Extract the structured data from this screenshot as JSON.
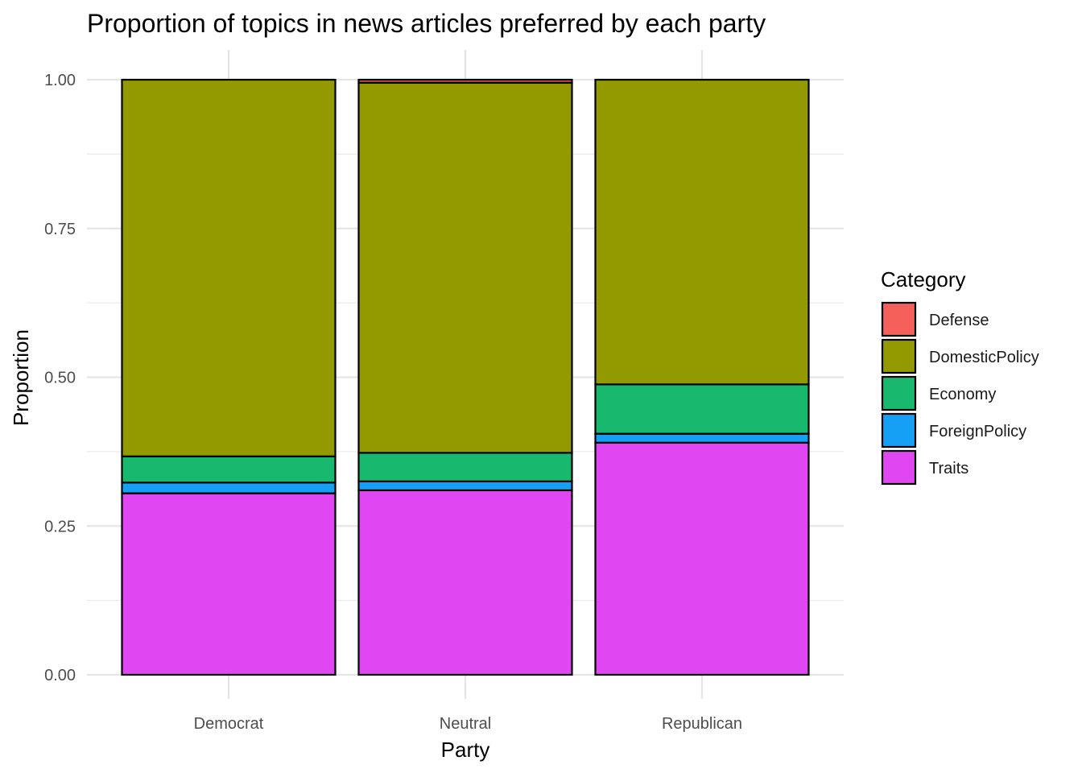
{
  "chart_data": {
    "type": "bar",
    "stacked": true,
    "title": "Proportion of topics in news articles preferred by each party",
    "xlabel": "Party",
    "ylabel": "Proportion",
    "ylim": [
      0,
      1
    ],
    "yticks": [
      "0.00",
      "0.25",
      "0.50",
      "0.75",
      "1.00"
    ],
    "ytick_values": [
      0,
      0.25,
      0.5,
      0.75,
      1.0
    ],
    "grid": true,
    "legend_title": "Category",
    "legend_position": "right",
    "categories": [
      "Democrat",
      "Neutral",
      "Republican"
    ],
    "series": [
      {
        "name": "Traits",
        "color": "#E046F1",
        "values": [
          0.305,
          0.31,
          0.39
        ]
      },
      {
        "name": "ForeignPolicy",
        "color": "#15A0F5",
        "values": [
          0.018,
          0.015,
          0.015
        ]
      },
      {
        "name": "Economy",
        "color": "#18B86E",
        "values": [
          0.044,
          0.048,
          0.083
        ]
      },
      {
        "name": "DomesticPolicy",
        "color": "#939A00",
        "values": [
          0.633,
          0.622,
          0.512
        ]
      },
      {
        "name": "Defense",
        "color": "#F5605A",
        "values": [
          0.0,
          0.005,
          0.0
        ]
      }
    ],
    "legend_order": [
      "Defense",
      "DomesticPolicy",
      "Economy",
      "ForeignPolicy",
      "Traits"
    ]
  }
}
